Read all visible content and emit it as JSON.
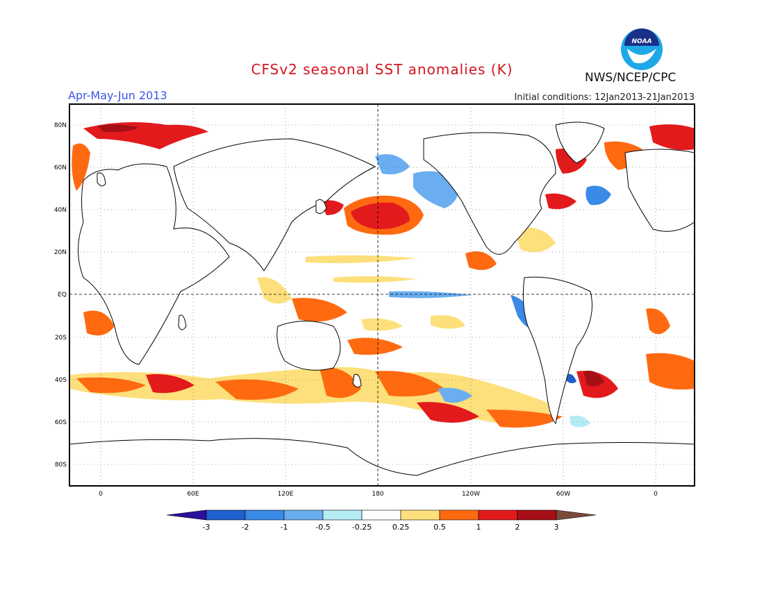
{
  "header": {
    "title": "CFSv2 seasonal SST anomalies (K)",
    "season": "Apr-May-Jun 2013",
    "initial_conditions": "Initial conditions: 12Jan2013-21Jan2013",
    "agency": "NWS/NCEP/CPC",
    "logo_text": "NOAA"
  },
  "map": {
    "lat_labels": [
      "80N",
      "60N",
      "40N",
      "20N",
      "EQ",
      "20S",
      "40S",
      "60S",
      "80S"
    ],
    "lon_labels": [
      "0",
      "60E",
      "120E",
      "180",
      "120W",
      "60W",
      "0"
    ],
    "colors": {
      "land_outline": "#000000",
      "grid": "#555555"
    }
  },
  "colorbar": {
    "labels": [
      "-3",
      "-2",
      "-1",
      "-0.5",
      "-0.25",
      "0.25",
      "0.5",
      "1",
      "2",
      "3"
    ],
    "colors": [
      "#2d0fa0",
      "#1f5fce",
      "#3a8ae8",
      "#6aaef0",
      "#b4ecf4",
      "#ffffff",
      "#fde07c",
      "#ff6a10",
      "#e31a1c",
      "#a50f15",
      "#7a4a3a"
    ]
  }
}
